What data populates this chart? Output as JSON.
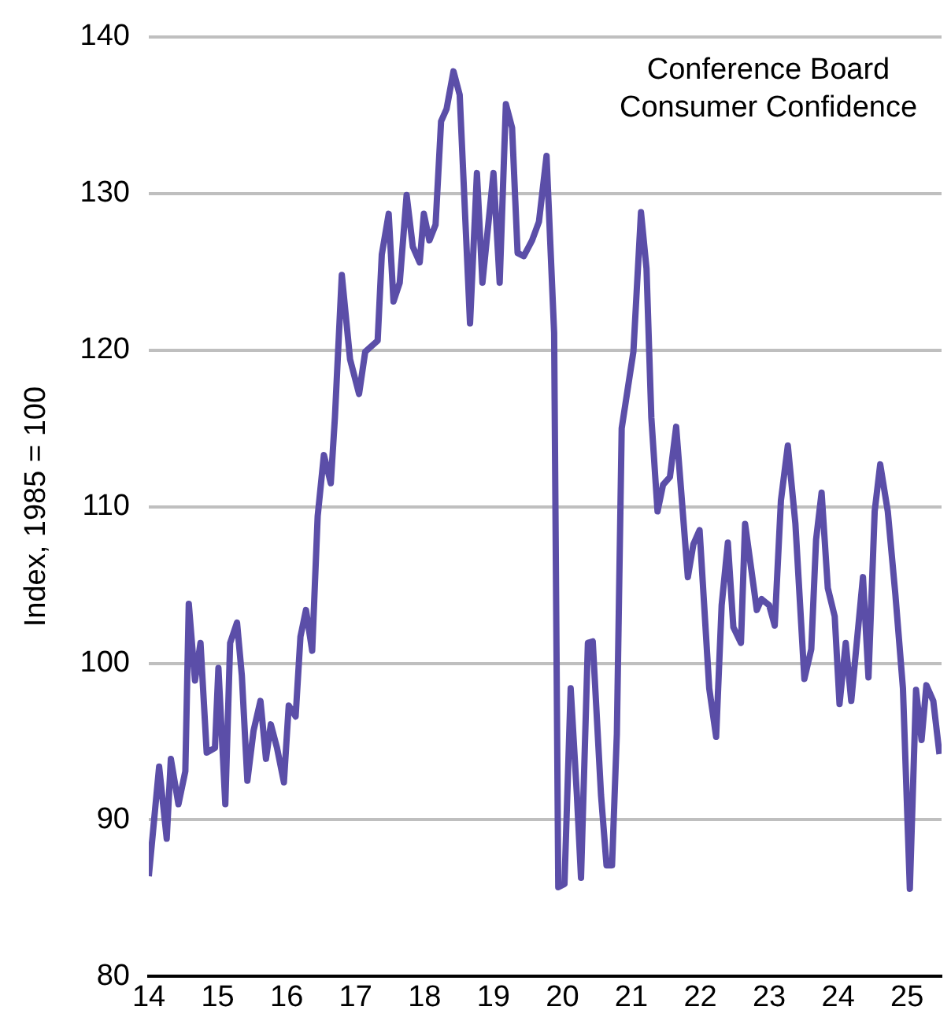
{
  "chart_data": {
    "type": "line",
    "ylabel": "Index, 1985 = 100",
    "annotations": [
      "Conference Board\nConsumer Confidence"
    ],
    "x": [
      14.0,
      14.15,
      14.26,
      14.32,
      14.43,
      14.53,
      14.58,
      14.67,
      14.75,
      14.84,
      14.96,
      15.01,
      15.11,
      15.18,
      15.28,
      15.35,
      15.43,
      15.52,
      15.62,
      15.7,
      15.77,
      15.86,
      15.96,
      16.03,
      16.13,
      16.2,
      16.28,
      16.37,
      16.45,
      16.54,
      16.64,
      16.7,
      16.8,
      16.92,
      17.05,
      17.14,
      17.32,
      17.38,
      17.48,
      17.55,
      17.64,
      17.74,
      17.83,
      17.93,
      17.99,
      18.07,
      18.16,
      18.24,
      18.32,
      18.42,
      18.51,
      18.59,
      18.66,
      18.76,
      18.84,
      19.0,
      19.09,
      19.18,
      19.27,
      19.35,
      19.44,
      19.56,
      19.66,
      19.77,
      19.88,
      19.94,
      20.03,
      20.12,
      20.21,
      20.27,
      20.37,
      20.44,
      20.56,
      20.64,
      20.72,
      20.79,
      20.86,
      21.03,
      21.14,
      21.22,
      21.29,
      21.38,
      21.46,
      21.56,
      21.65,
      21.82,
      21.9,
      21.99,
      22.13,
      22.23,
      22.31,
      22.4,
      22.48,
      22.59,
      22.65,
      22.74,
      22.82,
      22.89,
      23.0,
      23.08,
      23.17,
      23.27,
      23.38,
      23.51,
      23.61,
      23.68,
      23.76,
      23.85,
      23.95,
      24.02,
      24.11,
      24.19,
      24.36,
      24.44,
      24.53,
      24.61,
      24.72,
      24.83,
      24.94,
      25.04,
      25.13,
      25.21,
      25.28,
      25.38,
      25.47
    ],
    "series": [
      {
        "color": "#5b4ea8",
        "values": [
          86.4,
          93.4,
          88.8,
          93.9,
          91.0,
          93.1,
          103.8,
          98.9,
          101.3,
          94.3,
          94.6,
          99.7,
          91.0,
          101.3,
          102.6,
          99.2,
          92.5,
          95.7,
          97.6,
          93.9,
          96.1,
          94.6,
          92.4,
          97.3,
          96.6,
          101.7,
          103.4,
          100.8,
          109.4,
          113.3,
          111.5,
          115.7,
          124.8,
          119.4,
          117.2,
          119.9,
          120.6,
          126.1,
          128.7,
          123.1,
          124.3,
          129.9,
          126.6,
          125.6,
          128.7,
          127.0,
          128.0,
          134.6,
          135.4,
          137.8,
          136.3,
          128.5,
          121.7,
          131.3,
          124.3,
          131.3,
          124.3,
          135.7,
          134.2,
          126.2,
          126.0,
          127.0,
          128.2,
          132.4,
          121.1,
          85.7,
          85.9,
          98.4,
          91.6,
          86.3,
          101.3,
          101.4,
          91.6,
          87.1,
          87.1,
          95.5,
          115.0,
          119.9,
          128.8,
          125.2,
          115.7,
          109.7,
          111.4,
          111.9,
          115.1,
          105.5,
          107.6,
          108.5,
          98.4,
          95.3,
          103.7,
          107.7,
          102.3,
          101.3,
          108.9,
          106.0,
          103.4,
          104.1,
          103.7,
          102.4,
          110.4,
          113.9,
          108.9,
          99.0,
          100.9,
          107.9,
          110.9,
          104.8,
          103.0,
          97.4,
          101.3,
          97.6,
          105.5,
          99.1,
          109.7,
          112.7,
          109.7,
          104.4,
          98.4,
          85.6,
          98.3,
          95.1,
          98.6,
          97.6,
          94.2
        ]
      }
    ],
    "xlim": [
      14,
      25.5
    ],
    "xticks": [
      14,
      15,
      16,
      17,
      18,
      19,
      20,
      21,
      22,
      23,
      24,
      25
    ],
    "ylim": [
      80,
      140
    ],
    "yticks": [
      80,
      90,
      100,
      110,
      120,
      130,
      140
    ],
    "grid": "y",
    "legend": false,
    "marker": "none",
    "line_style": "solid"
  }
}
